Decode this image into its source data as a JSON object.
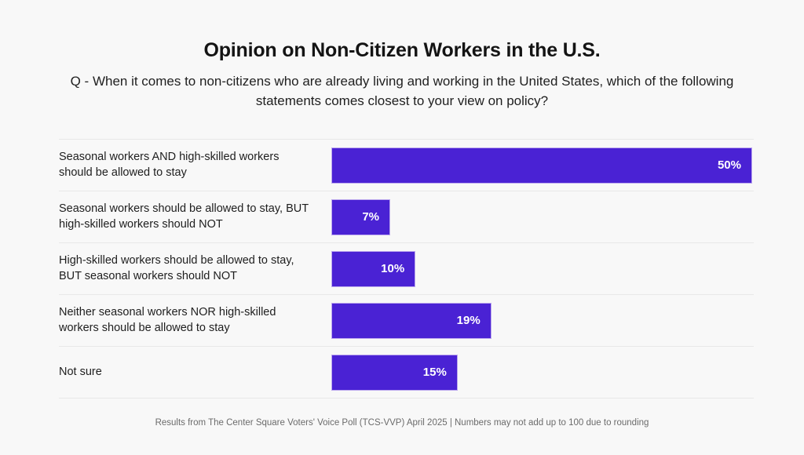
{
  "page": {
    "title": "Opinion on Non-Citizen Workers in the U.S.",
    "subtitle": "Q - When it comes to non-citizens who are already living and working in the United States, which of the following statements comes closest to your view on policy?",
    "footer": "Results from The Center Square Voters' Voice Poll (TCS-VVP) April 2025 | Numbers may not add up to 100 due to rounding"
  },
  "colors": {
    "bar": "#4a22d4",
    "bar_edge": "#bda9ee",
    "background": "#f8f8f8",
    "divider": "#e8e8e8",
    "title_text": "#141414",
    "label_text": "#1e1e1e",
    "value_text": "#ffffff",
    "footer_text": "#6b6b6b"
  },
  "chart_data": {
    "type": "bar",
    "orientation": "horizontal",
    "title": "Opinion on Non-Citizen Workers in the U.S.",
    "xlabel": "",
    "ylabel": "",
    "xlim": [
      0,
      50
    ],
    "grid": false,
    "legend": false,
    "value_format": "percent",
    "categories": [
      "Seasonal workers AND high-skilled workers should be allowed to stay",
      "Seasonal workers should be allowed to stay, BUT high-skilled workers should NOT",
      "High-skilled workers should be allowed to stay, BUT seasonal workers should NOT",
      "Neither seasonal workers NOR high-skilled workers should be allowed to stay",
      "Not sure"
    ],
    "values": [
      50,
      7,
      10,
      19,
      15
    ],
    "value_labels": [
      "50%",
      "7%",
      "10%",
      "19%",
      "15%"
    ]
  }
}
